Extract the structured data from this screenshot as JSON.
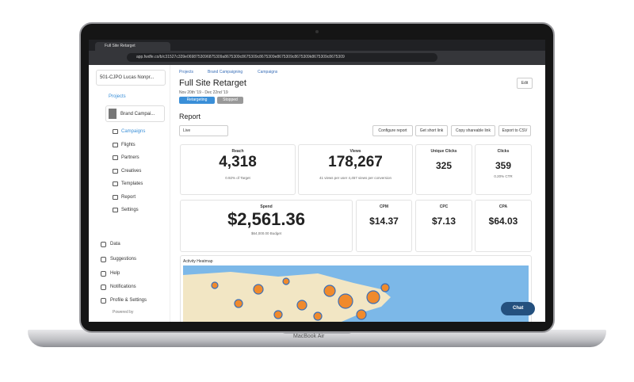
{
  "browser": {
    "tab": "Full Site Retarget",
    "url": "app.fwdfe.co/b/c31527c339e0698753096875309a8675309c8675309c8675309e8675309c8675309k8675309c8675309"
  },
  "sidebar": {
    "account": "501-CJPO Lucas Nonpr...",
    "projects": "Projects",
    "project": "Brand Campai...",
    "nav": [
      "Campaigns",
      "Flights",
      "Partners",
      "Creatives",
      "Templates",
      "Report",
      "Settings"
    ],
    "bottom": [
      "Data",
      "Suggestions",
      "Help",
      "Notifications",
      "Profile & Settings"
    ],
    "powered": "Powered by"
  },
  "header": {
    "breadcrumbs": [
      "Projects",
      "Brand Campaigning",
      "Campaigns"
    ],
    "title": "Full Site Retarget",
    "dates": "Nov 20th '19 - Dec 22nd '19",
    "tags": [
      "Retargeting",
      "Stopped"
    ],
    "edit": "Edit"
  },
  "report": {
    "title": "Report",
    "select": "Live",
    "buttons": [
      "Configure report",
      "Get short link",
      "Copy shareable link",
      "Export to CSV"
    ]
  },
  "metrics": [
    {
      "label": "Reach",
      "value": "4,318",
      "note": "0.92% of Target"
    },
    {
      "label": "Views",
      "value": "178,267",
      "note": "41 views per user 4,457 views per conversion"
    },
    {
      "label": "Unique Clicks",
      "value": "325"
    },
    {
      "label": "Clicks",
      "value": "359",
      "note": "0.20% CTR"
    },
    {
      "label": "Spend",
      "value": "$2,561.36",
      "note": "$64,000.00 Budget"
    },
    {
      "label": "CPM",
      "value": "$14.37"
    },
    {
      "label": "CPC",
      "value": "$7.13"
    },
    {
      "label": "CPA",
      "value": "$64.03"
    }
  ],
  "map": {
    "title": "Activity Heatmap"
  },
  "chat": "Chat",
  "laptop": "MacBook Air"
}
